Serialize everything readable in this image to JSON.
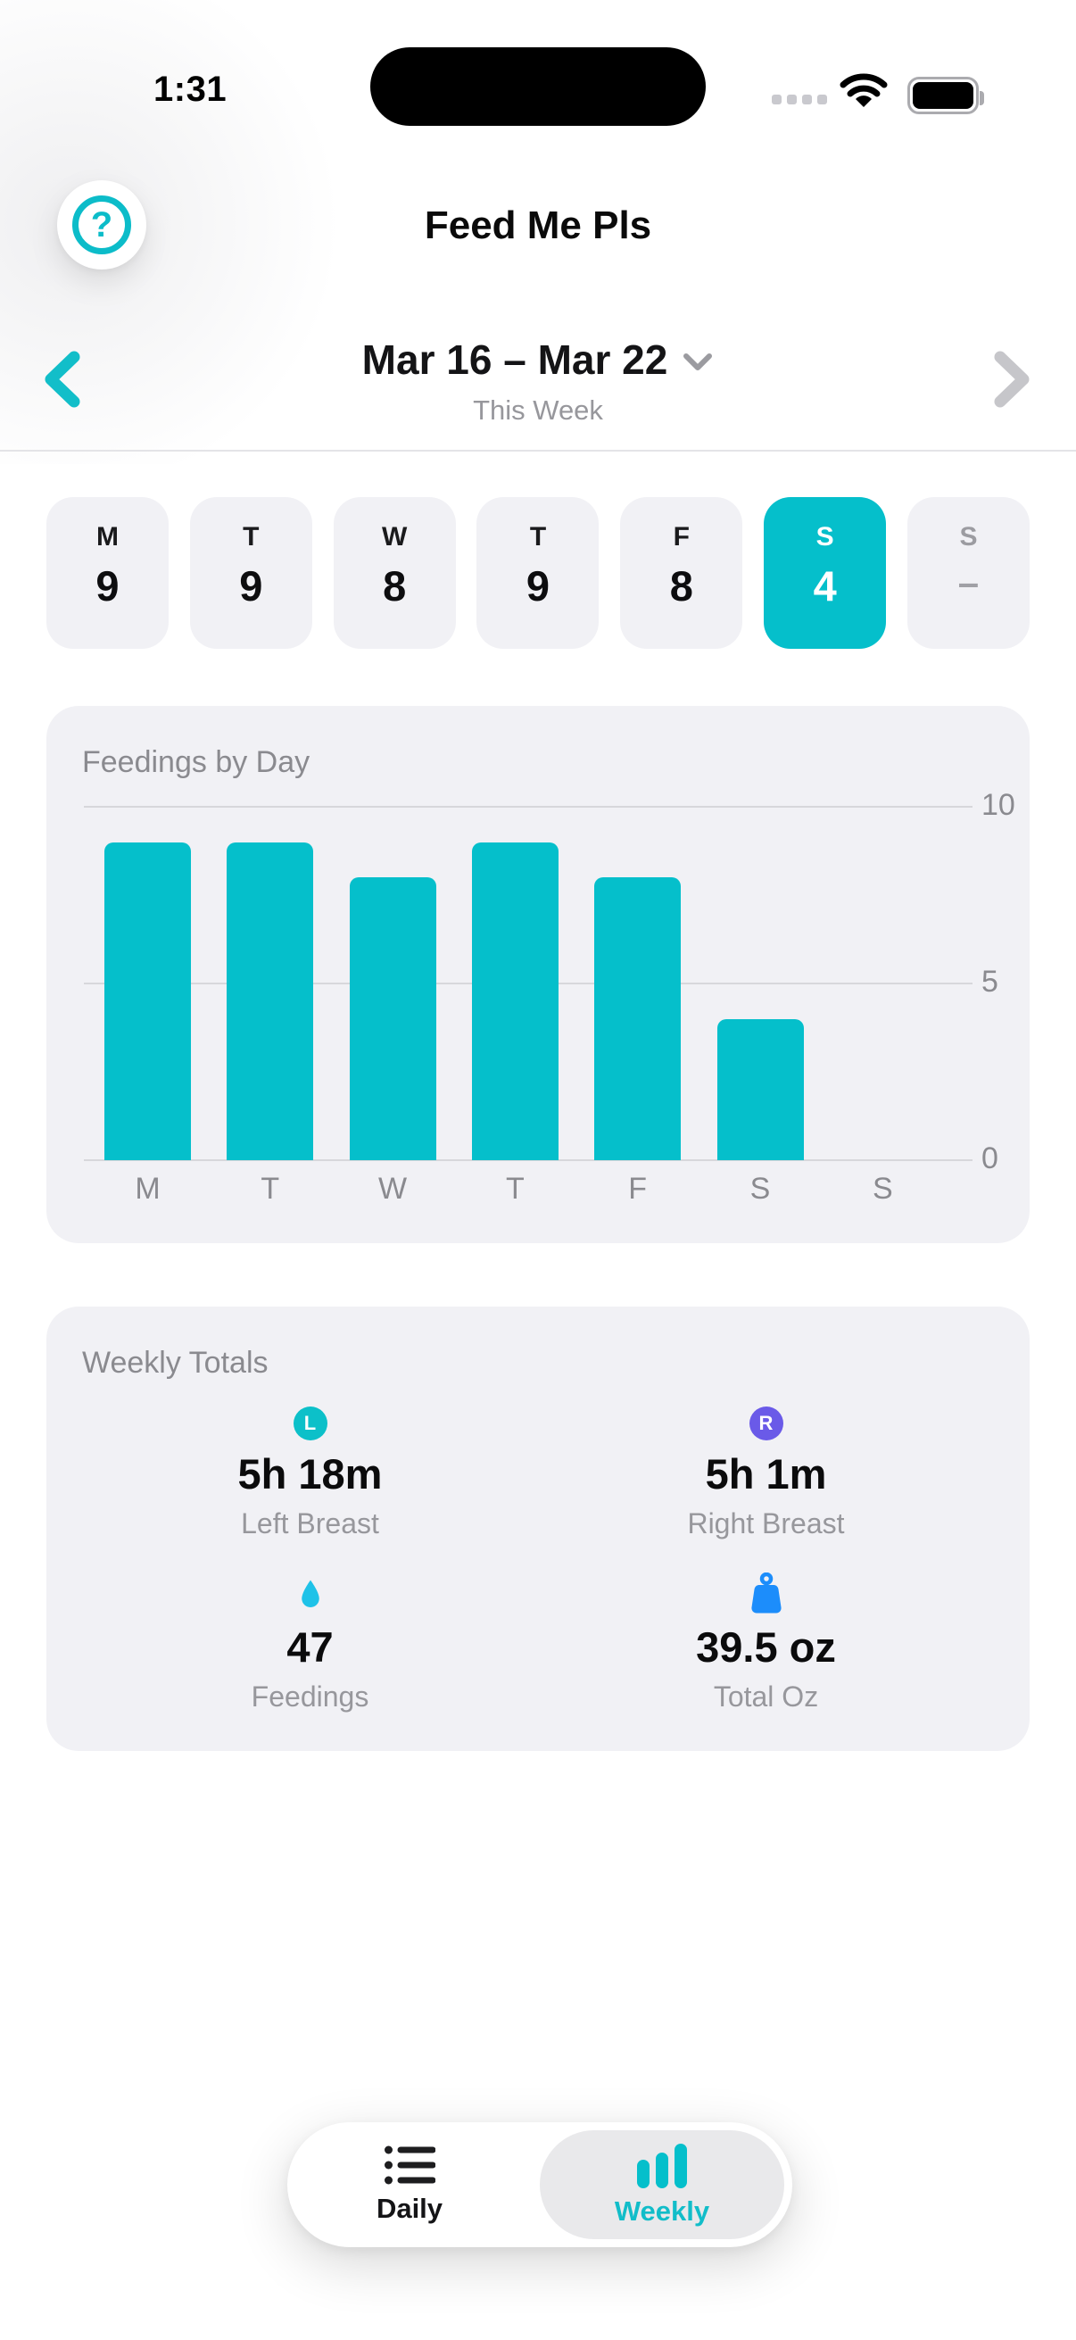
{
  "status_bar": {
    "time": "1:31"
  },
  "header": {
    "title": "Feed Me Pls"
  },
  "date_nav": {
    "range": "Mar 16 – Mar 22",
    "subtitle": "This Week"
  },
  "day_selector": [
    {
      "day": "M",
      "count": "9",
      "state": "normal"
    },
    {
      "day": "T",
      "count": "9",
      "state": "normal"
    },
    {
      "day": "W",
      "count": "8",
      "state": "normal"
    },
    {
      "day": "T",
      "count": "9",
      "state": "normal"
    },
    {
      "day": "F",
      "count": "8",
      "state": "normal"
    },
    {
      "day": "S",
      "count": "4",
      "state": "selected"
    },
    {
      "day": "S",
      "count": "–",
      "state": "empty"
    }
  ],
  "chart_data": {
    "type": "bar",
    "title": "Feedings by Day",
    "categories": [
      "M",
      "T",
      "W",
      "T",
      "F",
      "S",
      "S"
    ],
    "values": [
      9,
      9,
      8,
      9,
      8,
      4,
      0
    ],
    "yticks": [
      10,
      5,
      0
    ],
    "ylim": [
      0,
      10
    ],
    "xlabel": "",
    "ylabel": "",
    "grid": true,
    "legend": "none",
    "bar_color": "#05BFCB"
  },
  "weekly_totals": {
    "title": "Weekly Totals",
    "stats": [
      {
        "icon": "left-breast-badge",
        "badge_letter": "L",
        "badge_color": "#0CC0C9",
        "value": "5h 18m",
        "label": "Left Breast"
      },
      {
        "icon": "right-breast-badge",
        "badge_letter": "R",
        "badge_color": "#6A5AE8",
        "value": "5h 1m",
        "label": "Right Breast"
      },
      {
        "icon": "drop-icon",
        "icon_color": "#1FC2E8",
        "value": "47",
        "label": "Feedings"
      },
      {
        "icon": "weight-icon",
        "icon_color": "#1C8DFB",
        "value": "39.5 oz",
        "label": "Total Oz"
      }
    ]
  },
  "tab_bar": [
    {
      "label": "Daily",
      "icon": "list-icon",
      "active": false
    },
    {
      "label": "Weekly",
      "icon": "bar-chart-icon",
      "active": true
    }
  ],
  "colors": {
    "accent_teal": "#05BFCB",
    "purple": "#6A5AE8",
    "blue": "#1C8DFB",
    "cyan": "#1FC2E8",
    "card_bg": "#F1F1F5",
    "muted_text": "#8A8A8F"
  }
}
